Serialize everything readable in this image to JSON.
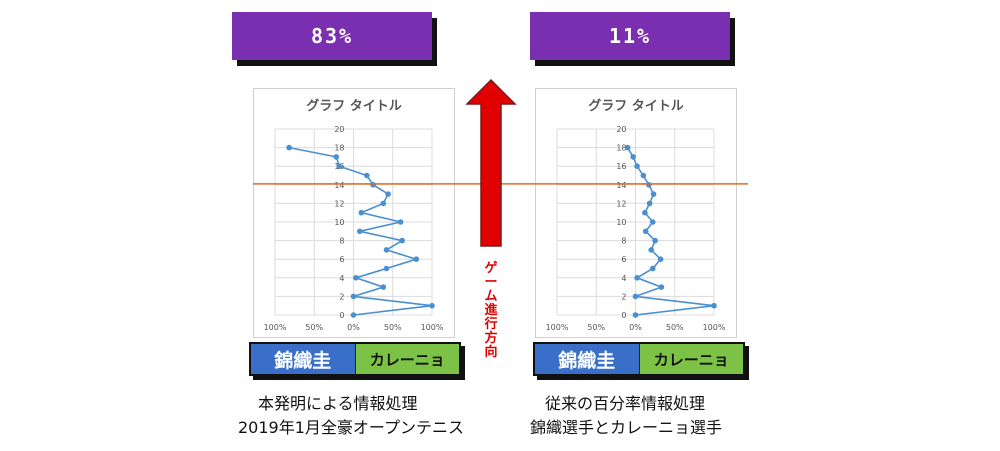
{
  "left": {
    "percentage": "83%",
    "legend": {
      "a": "錦織圭",
      "b": "カレーニョ"
    },
    "caption_line1": "本発明による情報処理",
    "caption_line2": "2019年1月全豪オープンテニス"
  },
  "right": {
    "percentage": "11%",
    "legend": {
      "a": "錦織圭",
      "b": "カレーニョ"
    },
    "caption_line1": "従来の百分率情報処理",
    "caption_line2": "錦織選手とカレーニョ選手"
  },
  "arrow_label": "ゲーム進行方向",
  "colors": {
    "purple": "#7a2fb0",
    "arrow": "#e00000",
    "series": "#4a90d0",
    "threshold": "#e06b1f",
    "legend_blue": "#3a6fc9",
    "legend_green": "#7cc246"
  },
  "chart_data": [
    {
      "type": "line",
      "title": "グラフ タイトル",
      "x_tick_labels": [
        "100%",
        "50%",
        "0%",
        "50%",
        "100%"
      ],
      "y_ticks": [
        0,
        2,
        4,
        6,
        8,
        10,
        12,
        14,
        16,
        18,
        20
      ],
      "ylim": [
        0,
        20
      ],
      "xlim": [
        -1,
        1
      ],
      "threshold_y": 14.1,
      "points": [
        {
          "x": 0.0,
          "y": 0
        },
        {
          "x": 1.0,
          "y": 1
        },
        {
          "x": 0.0,
          "y": 2
        },
        {
          "x": 0.38,
          "y": 3
        },
        {
          "x": 0.03,
          "y": 4
        },
        {
          "x": 0.42,
          "y": 5
        },
        {
          "x": 0.8,
          "y": 6
        },
        {
          "x": 0.42,
          "y": 7
        },
        {
          "x": 0.62,
          "y": 8
        },
        {
          "x": 0.08,
          "y": 9
        },
        {
          "x": 0.6,
          "y": 10
        },
        {
          "x": 0.1,
          "y": 11
        },
        {
          "x": 0.38,
          "y": 12
        },
        {
          "x": 0.44,
          "y": 13
        },
        {
          "x": 0.25,
          "y": 14
        },
        {
          "x": 0.17,
          "y": 15
        },
        {
          "x": -0.18,
          "y": 16
        },
        {
          "x": -0.22,
          "y": 17
        },
        {
          "x": -0.82,
          "y": 18
        }
      ]
    },
    {
      "type": "line",
      "title": "グラフ タイトル",
      "x_tick_labels": [
        "100%",
        "50%",
        "0%",
        "50%",
        "100%"
      ],
      "y_ticks": [
        0,
        2,
        4,
        6,
        8,
        10,
        12,
        14,
        16,
        18,
        20
      ],
      "ylim": [
        0,
        20
      ],
      "xlim": [
        -1,
        1
      ],
      "threshold_y": 14.1,
      "points": [
        {
          "x": 0.0,
          "y": 0
        },
        {
          "x": 1.0,
          "y": 1
        },
        {
          "x": 0.0,
          "y": 2
        },
        {
          "x": 0.33,
          "y": 3
        },
        {
          "x": 0.02,
          "y": 4
        },
        {
          "x": 0.22,
          "y": 5
        },
        {
          "x": 0.32,
          "y": 6
        },
        {
          "x": 0.2,
          "y": 7
        },
        {
          "x": 0.25,
          "y": 8
        },
        {
          "x": 0.13,
          "y": 9
        },
        {
          "x": 0.22,
          "y": 10
        },
        {
          "x": 0.12,
          "y": 11
        },
        {
          "x": 0.18,
          "y": 12
        },
        {
          "x": 0.23,
          "y": 13
        },
        {
          "x": 0.17,
          "y": 14
        },
        {
          "x": 0.1,
          "y": 15
        },
        {
          "x": 0.02,
          "y": 16
        },
        {
          "x": -0.03,
          "y": 17
        },
        {
          "x": -0.1,
          "y": 18
        }
      ]
    }
  ]
}
